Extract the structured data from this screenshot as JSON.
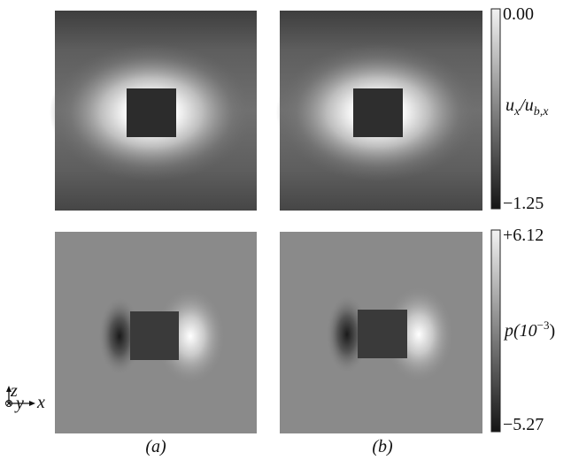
{
  "colorbars": [
    {
      "top": "0.00",
      "bottom": "−1.25",
      "label": [
        {
          "text": "u",
          "sub": false
        },
        {
          "text": "x",
          "sub": true
        },
        {
          "text": "/u",
          "sub": false
        },
        {
          "text": "b,x",
          "sub": true
        }
      ]
    },
    {
      "top": "+6.12",
      "bottom": "−5.27",
      "label": [
        {
          "text": "p(10",
          "sup": false
        },
        {
          "text": "−3",
          "sup": true
        },
        {
          "text": ")",
          "sup": false
        }
      ]
    }
  ],
  "captions": [
    "(a)",
    "(b)"
  ],
  "axes": {
    "z": "z",
    "y": "y",
    "x": "x"
  }
}
